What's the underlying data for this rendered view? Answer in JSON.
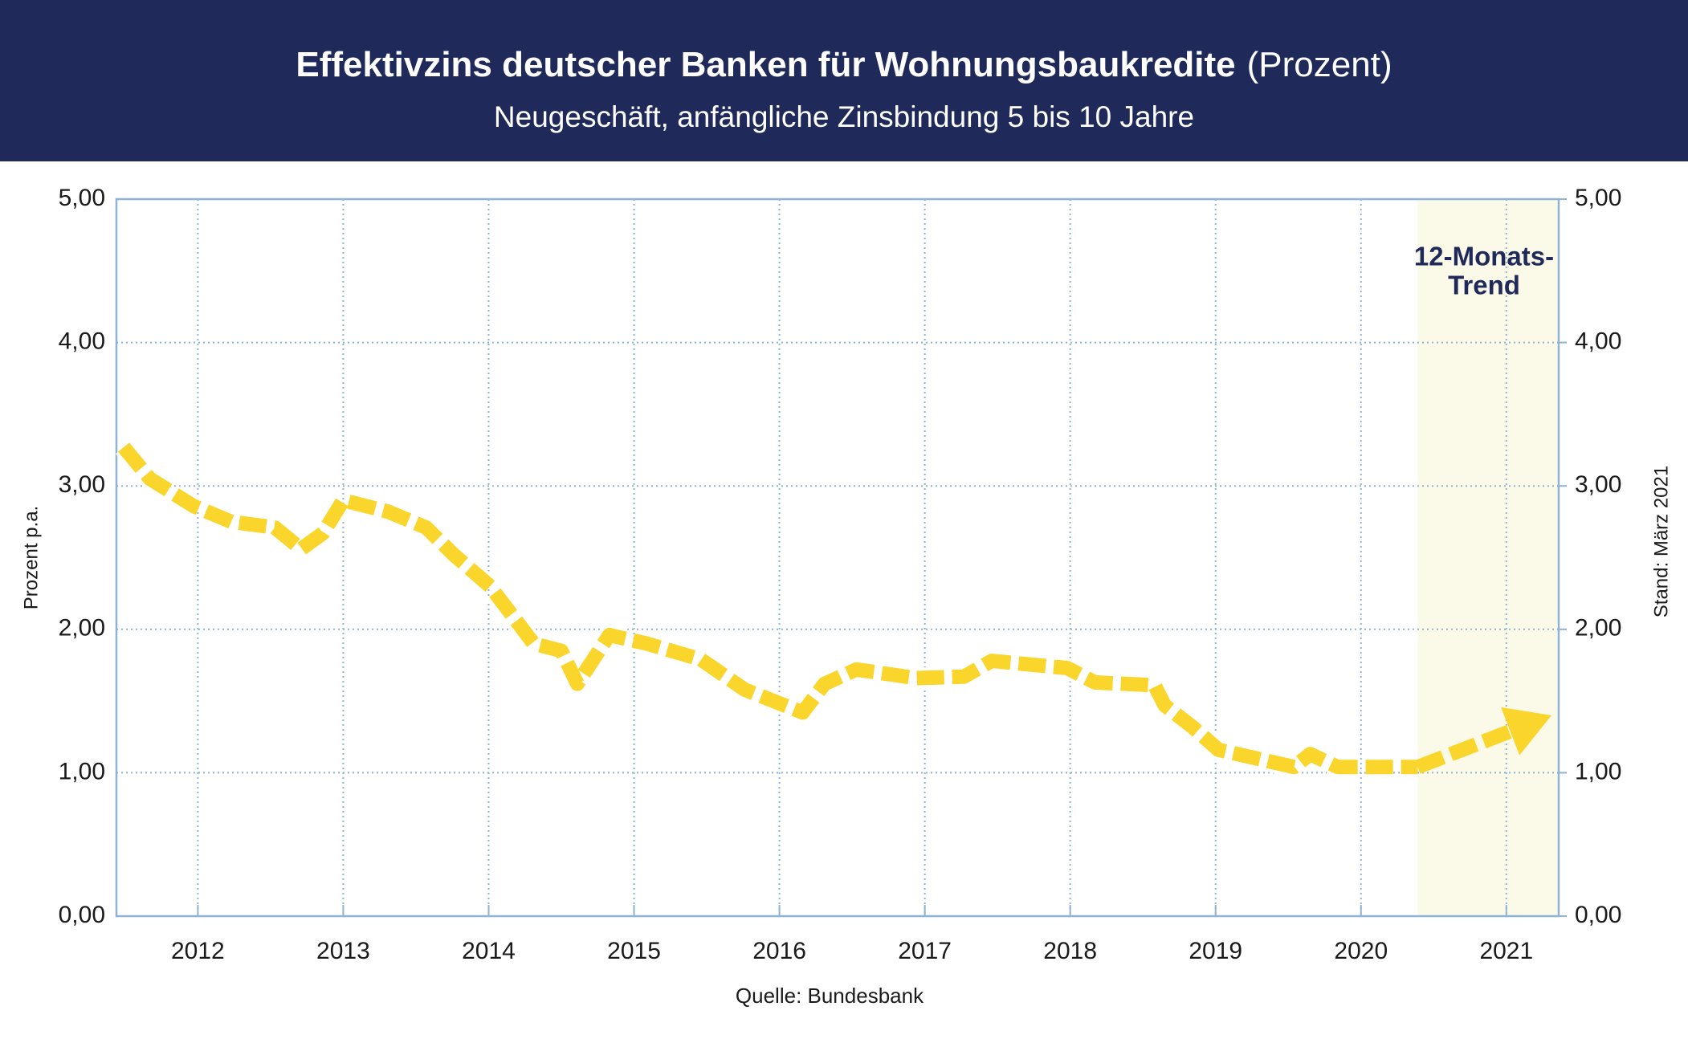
{
  "chart_data": {
    "type": "line",
    "title": "Effektivzins deutscher Banken für Wohnungsbaukredite",
    "title_suffix": "(Prozent)",
    "subtitle": "Neugeschäft, anfängliche Zinsbindung 5 bis 10 Jahre",
    "y_label": "Prozent p.a.",
    "y2_label": "Stand: März 2021",
    "source": "Quelle: Bundesbank",
    "annotation": [
      "12-Monats-",
      "Trend"
    ],
    "color": "#fad52c",
    "trend_shade_color": "#fbf9e8",
    "grid": true,
    "xlim": [
      2011.44,
      2021.36
    ],
    "xticks": [
      2012,
      2013,
      2014,
      2015,
      2016,
      2017,
      2018,
      2019,
      2020,
      2021
    ],
    "ylim": [
      0,
      5
    ],
    "yticks": [
      {
        "value": 0,
        "label": "0,00"
      },
      {
        "value": 1,
        "label": "1,00"
      },
      {
        "value": 2,
        "label": "2,00"
      },
      {
        "value": 3,
        "label": "3,00"
      },
      {
        "value": 4,
        "label": "4,00"
      },
      {
        "value": 5,
        "label": "5,00"
      }
    ],
    "y2lim": [
      0,
      5
    ],
    "y2ticks": [
      {
        "value": 0,
        "label": "0,00"
      },
      {
        "value": 1,
        "label": "1,00"
      },
      {
        "value": 2,
        "label": "2,00"
      },
      {
        "value": 3,
        "label": "3,00"
      },
      {
        "value": 4,
        "label": "4,00"
      },
      {
        "value": 5,
        "label": "5,00"
      }
    ],
    "x": [
      2011.49,
      2011.67,
      2011.97,
      2012.23,
      2012.53,
      2012.71,
      2012.86,
      2013.0,
      2013.31,
      2013.57,
      2013.76,
      2014.01,
      2014.31,
      2014.5,
      2014.61,
      2014.83,
      2015.09,
      2015.46,
      2015.76,
      2016.16,
      2016.31,
      2016.53,
      2016.94,
      2017.27,
      2017.46,
      2017.98,
      2018.17,
      2018.58,
      2018.65,
      2018.84,
      2019.02,
      2019.54,
      2019.65,
      2019.84,
      2020.39
    ],
    "values": [
      3.27,
      3.05,
      2.86,
      2.75,
      2.71,
      2.56,
      2.67,
      2.9,
      2.82,
      2.71,
      2.52,
      2.3,
      1.9,
      1.85,
      1.62,
      1.96,
      1.9,
      1.79,
      1.58,
      1.42,
      1.62,
      1.72,
      1.66,
      1.67,
      1.78,
      1.73,
      1.63,
      1.61,
      1.47,
      1.32,
      1.16,
      1.04,
      1.13,
      1.04,
      1.04
    ],
    "trend": {
      "x": [
        2020.39,
        2021.31
      ],
      "values": [
        1.04,
        1.4
      ]
    }
  }
}
